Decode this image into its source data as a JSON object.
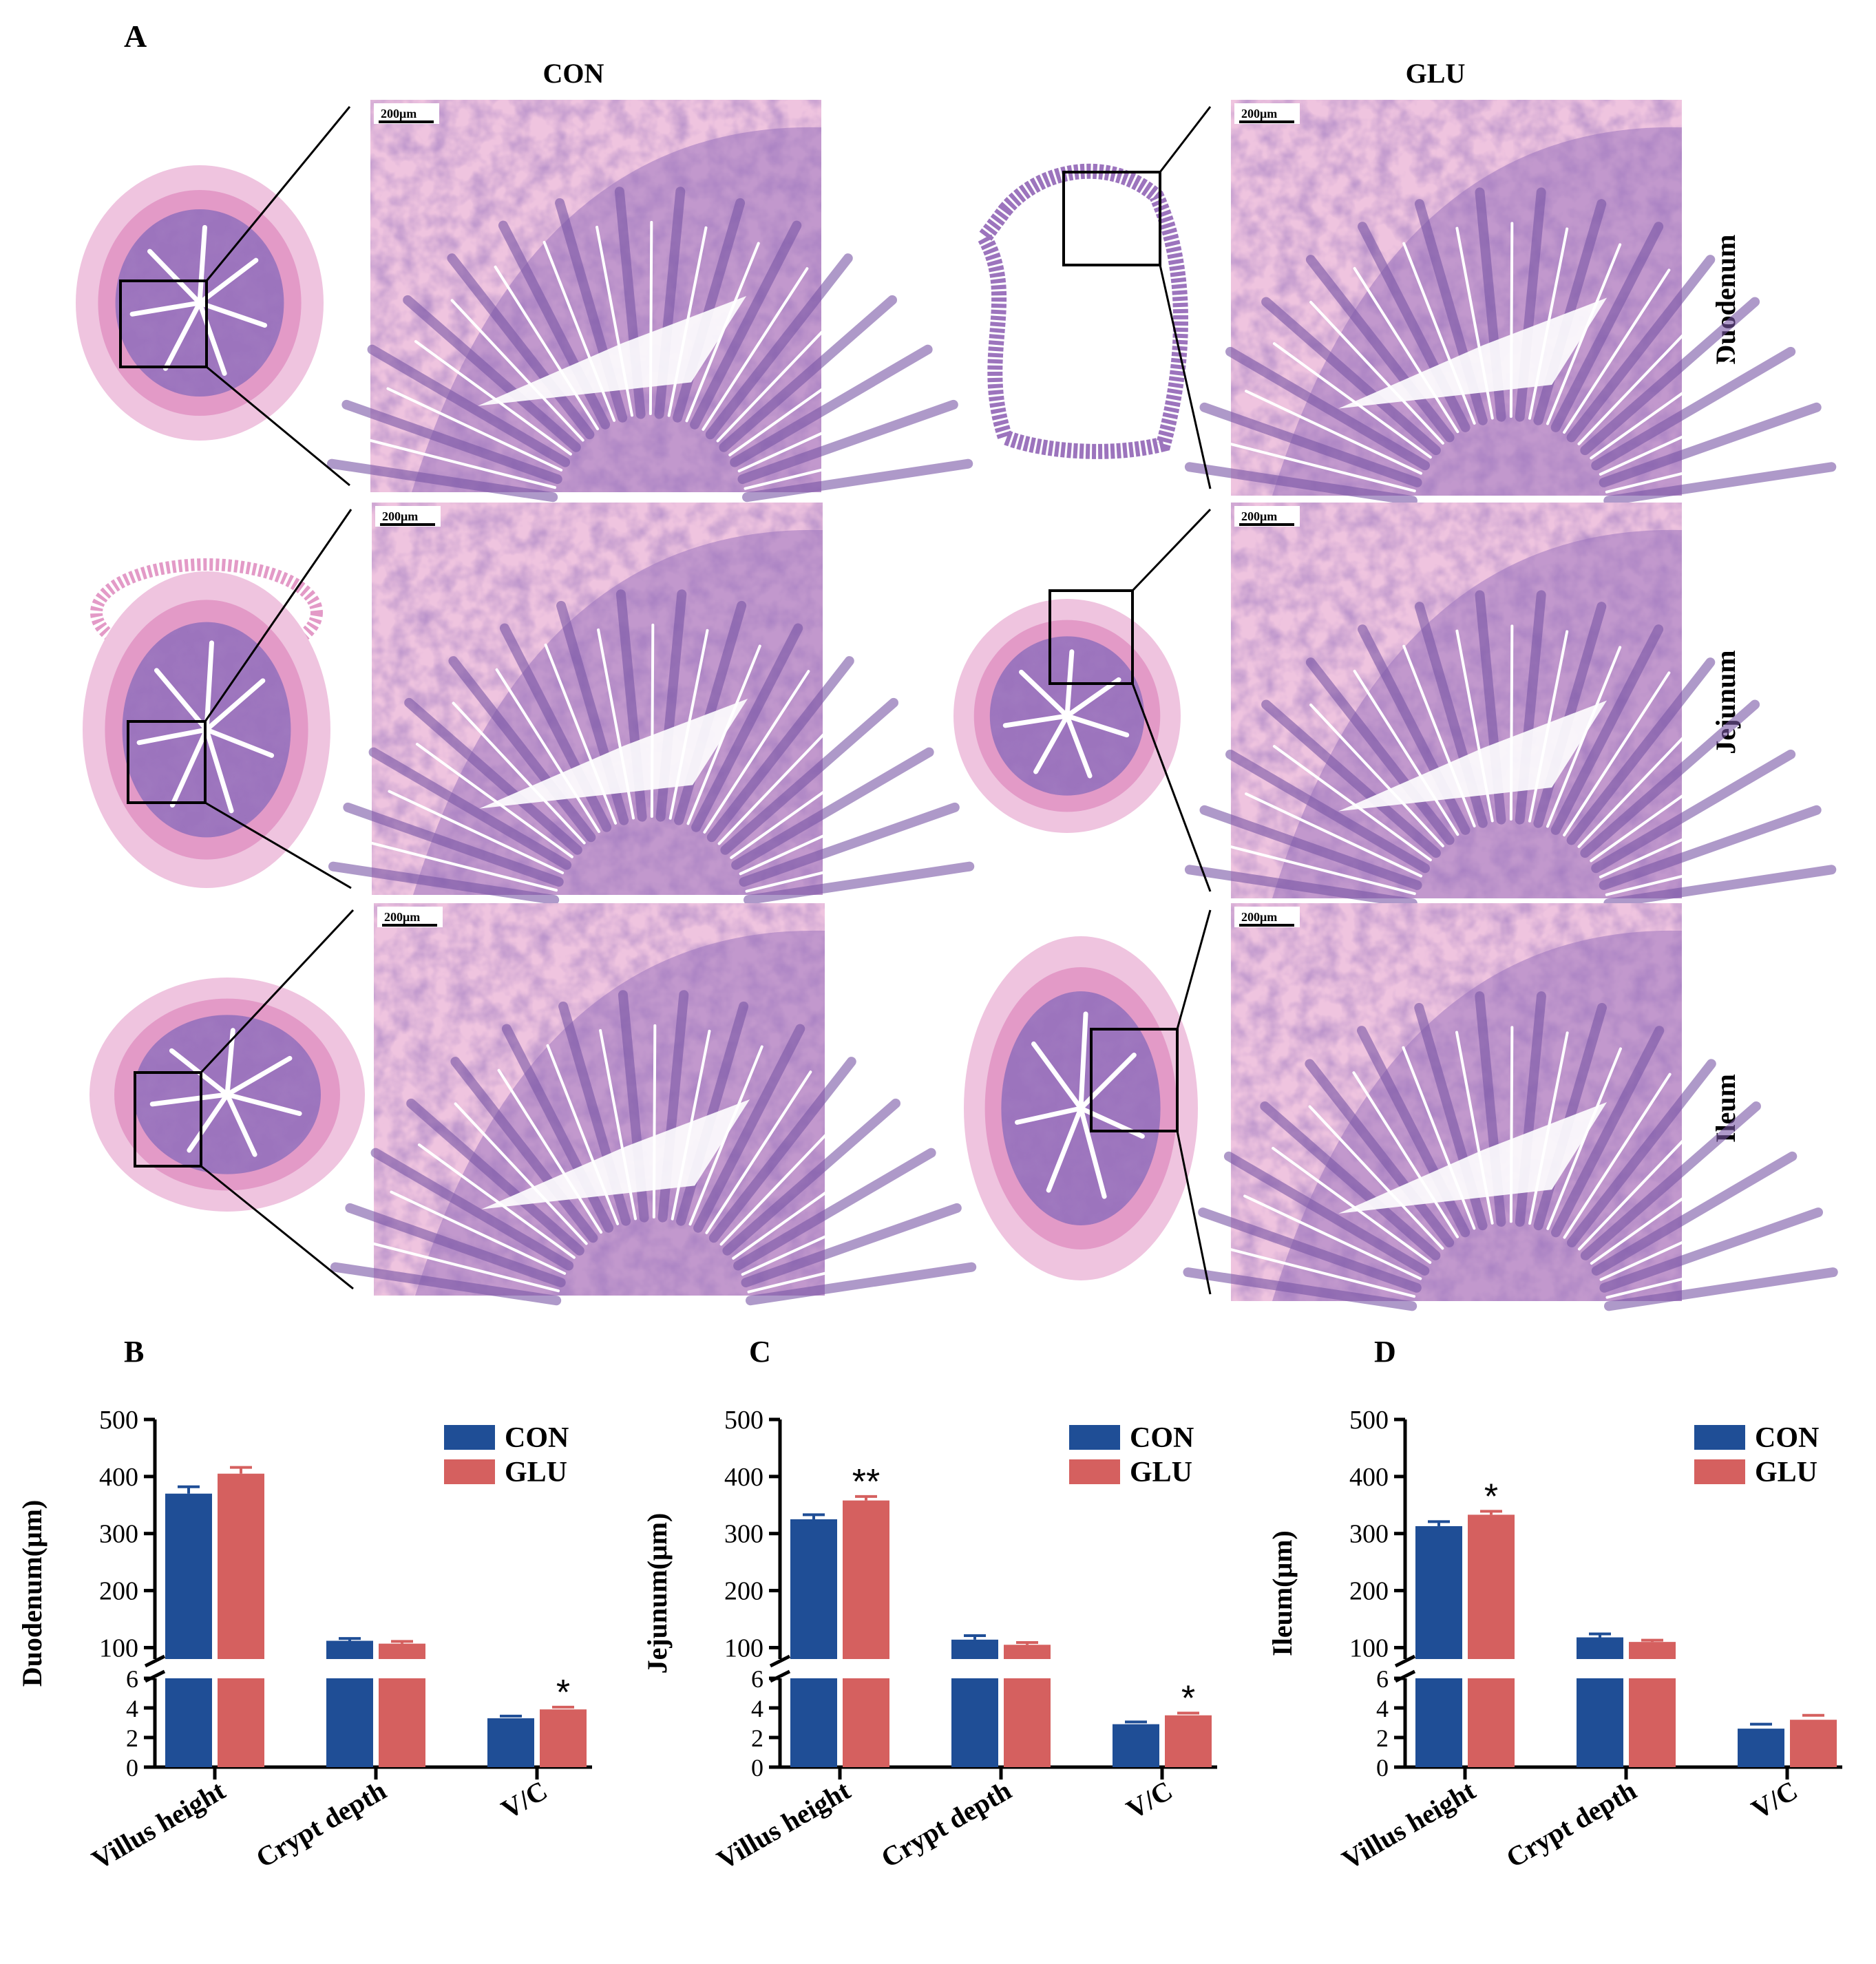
{
  "panel_a": {
    "label": "A",
    "scale_bar": "200μm",
    "groups": [
      "CON",
      "GLU"
    ],
    "segments": [
      "Duodenum",
      "Jejunum",
      "Ileum"
    ]
  },
  "colors": {
    "CON": "#1f4e96",
    "GLU": "#d5605f",
    "tissue_light": "#efc4df",
    "tissue_pink": "#e39ac7",
    "tissue_purple": "#9c74bd",
    "tissue_deep": "#7a57a6"
  },
  "chart_data": [
    {
      "panel": "B",
      "type": "bar",
      "ylabel": "Duodenum(μm)",
      "categories": [
        "Villus height",
        "Crypt depth",
        "V/C"
      ],
      "series": [
        {
          "name": "CON",
          "values": [
            370,
            112,
            3.3
          ],
          "errors": [
            12,
            4,
            0.15
          ]
        },
        {
          "name": "GLU",
          "values": [
            405,
            107,
            3.9
          ],
          "errors": [
            11,
            4,
            0.15
          ]
        }
      ],
      "significance": [
        "",
        "",
        "*"
      ],
      "axis_break": {
        "lower": [
          0,
          6
        ],
        "upper": [
          80,
          500
        ]
      },
      "yticks_lower": [
        0,
        2,
        4,
        6
      ],
      "yticks_upper": [
        100,
        200,
        300,
        400,
        500
      ],
      "legend_position": "top-right"
    },
    {
      "panel": "C",
      "type": "bar",
      "ylabel": "Jejunum(μm)",
      "categories": [
        "Villus height",
        "Crypt depth",
        "V/C"
      ],
      "series": [
        {
          "name": "CON",
          "values": [
            325,
            114,
            2.9
          ],
          "errors": [
            8,
            7,
            0.15
          ]
        },
        {
          "name": "GLU",
          "values": [
            358,
            105,
            3.5
          ],
          "errors": [
            7,
            4,
            0.15
          ]
        }
      ],
      "significance": [
        "**",
        "",
        "*"
      ],
      "axis_break": {
        "lower": [
          0,
          6
        ],
        "upper": [
          80,
          500
        ]
      },
      "yticks_lower": [
        0,
        2,
        4,
        6
      ],
      "yticks_upper": [
        100,
        200,
        300,
        400,
        500
      ],
      "legend_position": "top-right"
    },
    {
      "panel": "D",
      "type": "bar",
      "ylabel": "Ileum(μm)",
      "categories": [
        "Villus height",
        "Crypt depth",
        "V/C"
      ],
      "series": [
        {
          "name": "CON",
          "values": [
            313,
            118,
            2.6
          ],
          "errors": [
            8,
            6,
            0.3
          ]
        },
        {
          "name": "GLU",
          "values": [
            333,
            110,
            3.2
          ],
          "errors": [
            6,
            3,
            0.3
          ]
        }
      ],
      "significance": [
        "*",
        "",
        ""
      ],
      "axis_break": {
        "lower": [
          0,
          6
        ],
        "upper": [
          80,
          500
        ]
      },
      "yticks_lower": [
        0,
        2,
        4,
        6
      ],
      "yticks_upper": [
        100,
        200,
        300,
        400,
        500
      ],
      "legend_position": "top-right"
    }
  ]
}
